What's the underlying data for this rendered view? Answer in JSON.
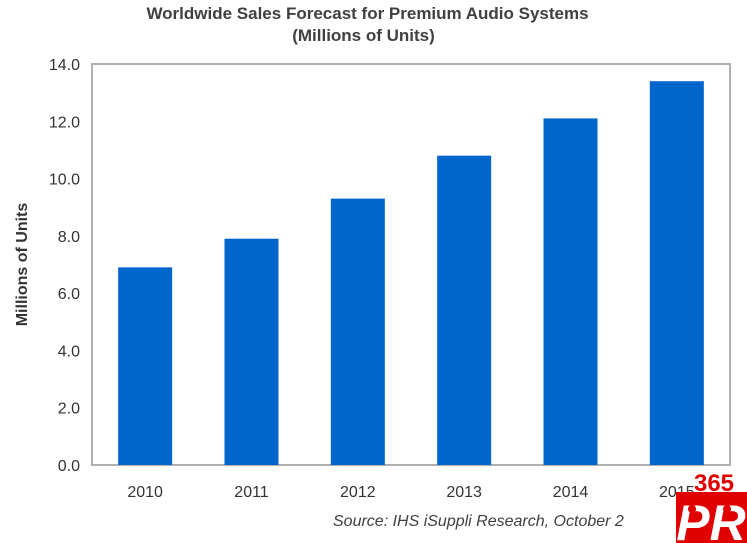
{
  "chart_data": {
    "type": "bar",
    "title": "Worldwide Sales Forecast for Premium Audio Systems",
    "subtitle": "(Millions of Units)",
    "xlabel": "",
    "ylabel": "Millions of Units",
    "categories": [
      "2010",
      "2011",
      "2012",
      "2013",
      "2014",
      "2015"
    ],
    "values": [
      6.9,
      7.9,
      9.3,
      10.8,
      12.1,
      13.4
    ],
    "ylim": [
      0,
      14
    ],
    "yticks": [
      "0.0",
      "2.0",
      "4.0",
      "6.0",
      "8.0",
      "10.0",
      "12.0",
      "14.0"
    ],
    "grid": false,
    "bar_color": "#0066cc",
    "source": "Source: IHS iSuppli Research, October 2"
  },
  "logo": {
    "text": "365 PR",
    "color": "#e00000"
  }
}
